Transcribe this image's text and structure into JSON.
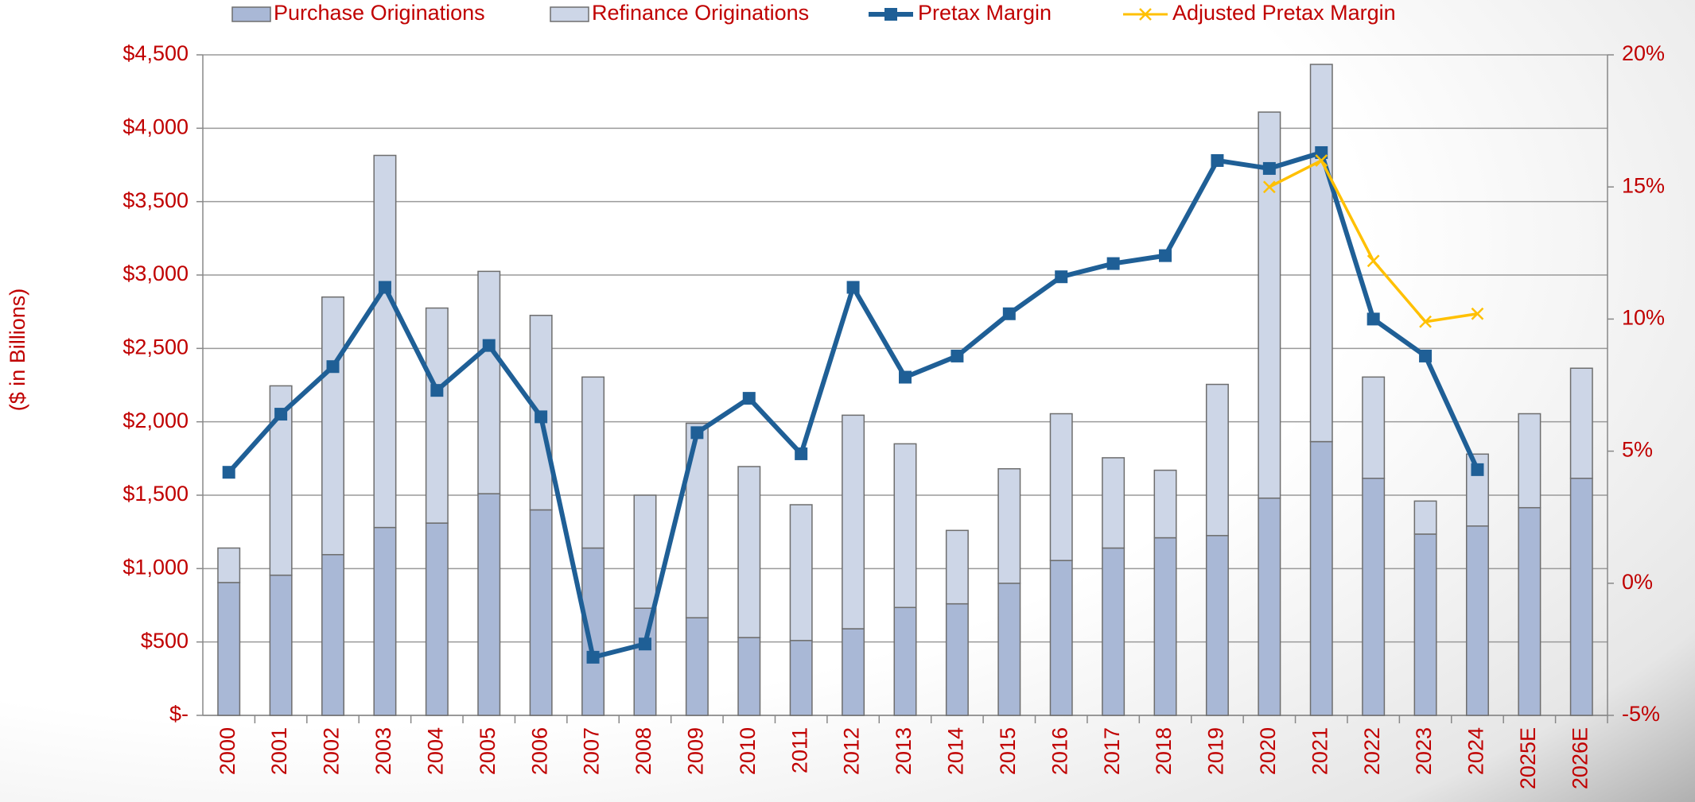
{
  "chart_data": {
    "type": "bar",
    "y_axis_label": "($ in Billions)",
    "categories": [
      "2000",
      "2001",
      "2002",
      "2003",
      "2004",
      "2005",
      "2006",
      "2007",
      "2008",
      "2009",
      "2010",
      "2011",
      "2012",
      "2013",
      "2014",
      "2015",
      "2016",
      "2017",
      "2018",
      "2019",
      "2020",
      "2021",
      "2022",
      "2023",
      "2024",
      "2025E",
      "2026E"
    ],
    "series": [
      {
        "name": "Purchase Originations",
        "type": "bar",
        "color": "#a9b8d6",
        "values": [
          905,
          955,
          1095,
          1280,
          1310,
          1510,
          1400,
          1140,
          730,
          665,
          530,
          510,
          590,
          735,
          760,
          900,
          1055,
          1140,
          1210,
          1225,
          1480,
          1865,
          1615,
          1235,
          1290,
          1415,
          1615
        ]
      },
      {
        "name": "Refinance Originations",
        "type": "bar",
        "color": "#cdd6e7",
        "values": [
          235,
          1290,
          1755,
          2535,
          1465,
          1515,
          1325,
          1165,
          770,
          1325,
          1165,
          925,
          1455,
          1115,
          500,
          780,
          1000,
          615,
          460,
          1030,
          2630,
          2570,
          690,
          225,
          490,
          640,
          750
        ]
      },
      {
        "name": "Pretax Margin",
        "type": "line",
        "axis": "y2",
        "color": "#1f5f96",
        "marker": "square",
        "values": [
          4.2,
          6.4,
          8.2,
          11.2,
          7.3,
          9.0,
          6.3,
          -2.8,
          -2.3,
          5.7,
          7.0,
          4.9,
          11.2,
          7.8,
          8.6,
          10.2,
          11.6,
          12.1,
          12.4,
          16.0,
          15.7,
          16.3,
          10.0,
          8.6,
          4.3,
          null,
          null
        ]
      },
      {
        "name": "Adjusted Pretax Margin",
        "type": "line",
        "axis": "y2",
        "color": "#ffc000",
        "marker": "x",
        "values": [
          null,
          null,
          null,
          null,
          null,
          null,
          null,
          null,
          null,
          null,
          null,
          null,
          null,
          null,
          null,
          null,
          null,
          null,
          null,
          null,
          15.0,
          16.0,
          12.2,
          9.9,
          10.2,
          null,
          null
        ]
      }
    ],
    "ylim": [
      0,
      4500
    ],
    "yticks": [
      {
        "value": 0,
        "label": "$-"
      },
      {
        "value": 500,
        "label": "$500"
      },
      {
        "value": 1000,
        "label": "$1,000"
      },
      {
        "value": 1500,
        "label": "$1,500"
      },
      {
        "value": 2000,
        "label": "$2,000"
      },
      {
        "value": 2500,
        "label": "$2,500"
      },
      {
        "value": 3000,
        "label": "$3,000"
      },
      {
        "value": 3500,
        "label": "$3,500"
      },
      {
        "value": 4000,
        "label": "$4,000"
      },
      {
        "value": 4500,
        "label": "$4,500"
      }
    ],
    "y2lim": [
      -5,
      20
    ],
    "y2ticks": [
      {
        "value": -5,
        "label": "-5%"
      },
      {
        "value": 0,
        "label": "0%"
      },
      {
        "value": 5,
        "label": "5%"
      },
      {
        "value": 10,
        "label": "10%"
      },
      {
        "value": 15,
        "label": "15%"
      },
      {
        "value": 20,
        "label": "20%"
      }
    ],
    "grid": true,
    "legend": "top"
  }
}
